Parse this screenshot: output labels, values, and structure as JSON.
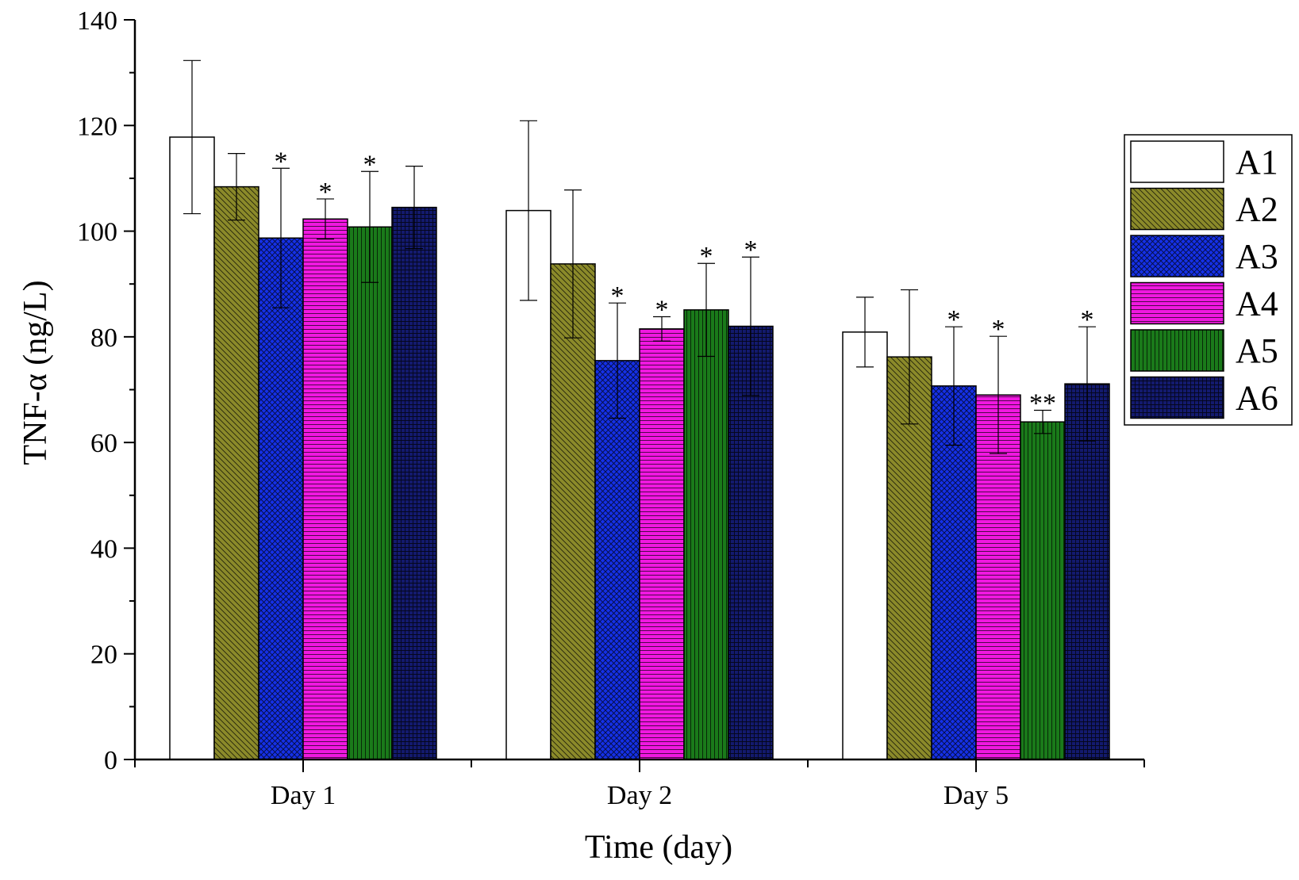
{
  "chart_data": {
    "type": "bar",
    "title": "",
    "xlabel": "Time (day)",
    "ylabel": "TNF-α (ng/L)",
    "ylim": [
      0,
      140
    ],
    "yticks": [
      0,
      20,
      40,
      60,
      80,
      100,
      120,
      140
    ],
    "grid": false,
    "legend_position": "right",
    "categories": [
      "Day 1",
      "Day 2",
      "Day 5"
    ],
    "series": [
      {
        "name": "A1",
        "color": "#ffffff",
        "pattern": "none",
        "values": [
          117.8,
          103.9,
          80.9
        ],
        "errors": [
          14.5,
          17.0,
          6.6
        ],
        "marks": [
          "",
          "",
          ""
        ]
      },
      {
        "name": "A2",
        "color": "#8b8a2a",
        "pattern": "diag",
        "values": [
          108.4,
          93.8,
          76.2
        ],
        "errors": [
          6.3,
          14.0,
          12.7
        ],
        "marks": [
          "",
          "",
          ""
        ]
      },
      {
        "name": "A3",
        "color": "#1530e6",
        "pattern": "cross",
        "values": [
          98.7,
          75.5,
          70.7
        ],
        "errors": [
          13.2,
          10.9,
          11.2
        ],
        "marks": [
          "*",
          "*",
          "*"
        ]
      },
      {
        "name": "A4",
        "color": "#f018e0",
        "pattern": "hlines",
        "values": [
          102.3,
          81.5,
          69.0
        ],
        "errors": [
          3.8,
          2.3,
          11.1
        ],
        "marks": [
          "*",
          "*",
          "*"
        ]
      },
      {
        "name": "A5",
        "color": "#1a7a1a",
        "pattern": "vlines",
        "values": [
          100.8,
          85.1,
          63.9
        ],
        "errors": [
          10.5,
          8.8,
          2.2
        ],
        "marks": [
          "*",
          "*",
          "**"
        ]
      },
      {
        "name": "A6",
        "color": "#131a6e",
        "pattern": "grid",
        "values": [
          104.5,
          82.0,
          71.1
        ],
        "errors": [
          7.8,
          13.1,
          10.8
        ],
        "marks": [
          "",
          "*",
          "*"
        ]
      }
    ]
  }
}
